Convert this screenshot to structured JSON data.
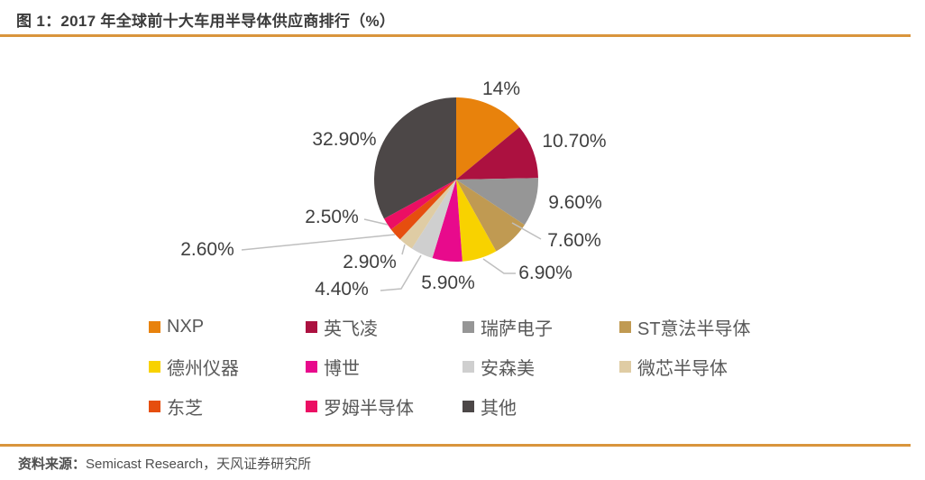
{
  "figure": {
    "title": "图 1：2017 年全球前十大车用半导体供应商排行（%）",
    "source_prefix": "资料来源：",
    "source_main": "Semicast Research，天风证券研究所",
    "accent_color": "#D9953C",
    "leader_line_color": "#BFBFBF"
  },
  "chart_data": {
    "type": "pie",
    "title": "2017 年全球前十大车用半导体供应商排行（%）",
    "unit": "%",
    "start_angle": "12-o-clock",
    "direction": "clockwise",
    "legend_position": "bottom",
    "series": [
      {
        "name": "NXP",
        "value": 14,
        "label": "14%",
        "color": "#E8820C"
      },
      {
        "name": "英飞凌",
        "value": 10.7,
        "label": "10.70%",
        "color": "#AC1140"
      },
      {
        "name": "瑞萨电子",
        "value": 9.6,
        "label": "9.60%",
        "color": "#969696"
      },
      {
        "name": "ST意法半导体",
        "value": 7.6,
        "label": "7.60%",
        "color": "#C09A52"
      },
      {
        "name": "德州仪器",
        "value": 6.9,
        "label": "6.90%",
        "color": "#F8D200"
      },
      {
        "name": "博世",
        "value": 5.9,
        "label": "5.90%",
        "color": "#E80A8C"
      },
      {
        "name": "安森美",
        "value": 4.4,
        "label": "4.40%",
        "color": "#CFCFCF"
      },
      {
        "name": "微芯半导体",
        "value": 2.9,
        "label": "2.90%",
        "color": "#DFCCA4"
      },
      {
        "name": "东芝",
        "value": 2.6,
        "label": "2.60%",
        "color": "#E64E0E"
      },
      {
        "name": "罗姆半导体",
        "value": 2.5,
        "label": "2.50%",
        "color": "#EB0F63"
      },
      {
        "name": "其他",
        "value": 32.9,
        "label": "32.90%",
        "color": "#4C4747"
      }
    ]
  }
}
